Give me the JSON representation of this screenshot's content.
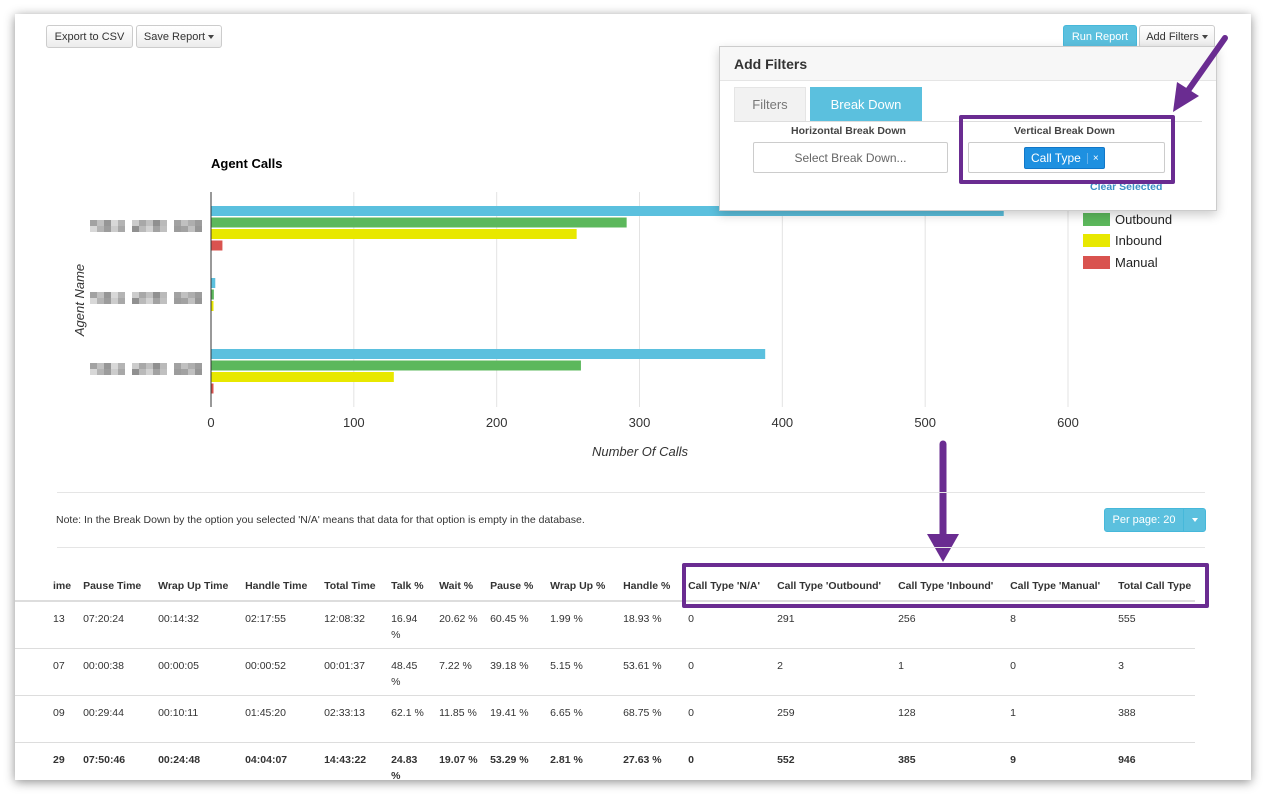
{
  "toolbar": {
    "export_csv": "Export to CSV",
    "save_report": "Save Report",
    "run_report": "Run Report",
    "add_filters": "Add Filters"
  },
  "filter_panel": {
    "title": "Add Filters",
    "tabs": [
      "Filters",
      "Break Down"
    ],
    "active_tab": "Break Down",
    "horizontal_label": "Horizontal Break Down",
    "horizontal_placeholder": "Select Break Down...",
    "vertical_label": "Vertical Break Down",
    "vertical_selected": "Call Type",
    "vertical_remove": "×",
    "clear_selected": "Clear Selected"
  },
  "chart_data": {
    "type": "bar",
    "orientation": "horizontal",
    "title": "Agent Calls",
    "xlabel": "Number Of Calls",
    "ylabel": "Agent Name",
    "xlim": [
      0,
      600
    ],
    "xticks": [
      "0",
      "100",
      "200",
      "300",
      "400",
      "500",
      "600"
    ],
    "grid": true,
    "legend_position": "right",
    "categories": [
      "(redacted agent 1)",
      "(redacted agent 2)",
      "(redacted agent 3)"
    ],
    "series": [
      {
        "name": "Total Call Type",
        "color": "#5bc0de",
        "values": [
          555,
          3,
          388
        ]
      },
      {
        "name": "Outbound",
        "color": "#5cb85c",
        "values": [
          291,
          2,
          259
        ]
      },
      {
        "name": "Inbound",
        "color": "#e8e800",
        "values": [
          256,
          1,
          128
        ]
      },
      {
        "name": "Manual",
        "color": "#d9534f",
        "values": [
          8,
          0,
          1
        ]
      }
    ],
    "legend": [
      {
        "name": "Outbound",
        "color": "#5cb85c"
      },
      {
        "name": "Inbound",
        "color": "#e8e800"
      },
      {
        "name": "Manual",
        "color": "#d9534f"
      }
    ]
  },
  "note": "Note: In the Break Down by the option you selected 'N/A' means that data for that option is empty in the database.",
  "per_page": "Per page: 20",
  "table": {
    "columns": [
      "ime",
      "Pause Time",
      "Wrap Up Time",
      "Handle Time",
      "Total Time",
      "Talk %",
      "Wait %",
      "Pause %",
      "Wrap Up %",
      "Handle %",
      "Call Type 'N/A'",
      "Call Type 'Outbound'",
      "Call Type 'Inbound'",
      "Call Type 'Manual'",
      "Total Call Type"
    ],
    "rows": [
      [
        "13",
        "07:20:24",
        "00:14:32",
        "02:17:55",
        "12:08:32",
        "16.94 %",
        "20.62 %",
        "60.45 %",
        "1.99 %",
        "18.93 %",
        "0",
        "291",
        "256",
        "8",
        "555"
      ],
      [
        "07",
        "00:00:38",
        "00:00:05",
        "00:00:52",
        "00:01:37",
        "48.45 %",
        "7.22 %",
        "39.18 %",
        "5.15 %",
        "53.61 %",
        "0",
        "2",
        "1",
        "0",
        "3"
      ],
      [
        "09",
        "00:29:44",
        "00:10:11",
        "01:45:20",
        "02:33:13",
        "62.1 %",
        "11.85 %",
        "19.41 %",
        "6.65 %",
        "68.75 %",
        "0",
        "259",
        "128",
        "1",
        "388"
      ]
    ],
    "total": [
      "29",
      "07:50:46",
      "00:24:48",
      "04:04:07",
      "14:43:22",
      "24.83 %",
      "19.07 %",
      "53.29 %",
      "2.81 %",
      "27.63 %",
      "0",
      "552",
      "385",
      "9",
      "946"
    ]
  },
  "annotation_color": "#6a2c91"
}
